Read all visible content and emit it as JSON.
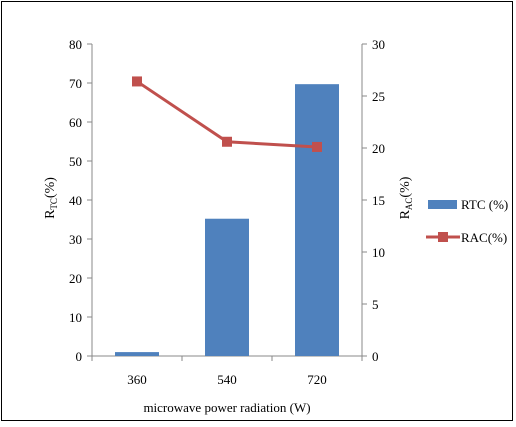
{
  "chart_data": {
    "type": "bar+line",
    "categories": [
      "360",
      "540",
      "720"
    ],
    "series": [
      {
        "name": "RTC (%)",
        "type": "bar",
        "axis": "left",
        "values": [
          1,
          35.2,
          69.7
        ],
        "color": "#4F81BD"
      },
      {
        "name": "RAC(%)",
        "type": "line",
        "axis": "right",
        "values": [
          26.4,
          20.6,
          20.1
        ],
        "color": "#C0504D",
        "marker": "square"
      }
    ],
    "xlabel": "microwave power radiation (W)",
    "ylabel_left": {
      "main": "R",
      "sub": "TC",
      "suffix": "(%)"
    },
    "ylabel_right": {
      "main": "R",
      "sub": "AC",
      "suffix": "(%)"
    },
    "ylim_left": [
      0,
      80
    ],
    "yticks_left": [
      "0",
      "10",
      "20",
      "30",
      "40",
      "50",
      "60",
      "70",
      "80"
    ],
    "ylim_right": [
      0,
      30
    ],
    "yticks_right": [
      "0",
      "5",
      "10",
      "15",
      "20",
      "25",
      "30"
    ],
    "grid": false,
    "legend_position": "right"
  }
}
